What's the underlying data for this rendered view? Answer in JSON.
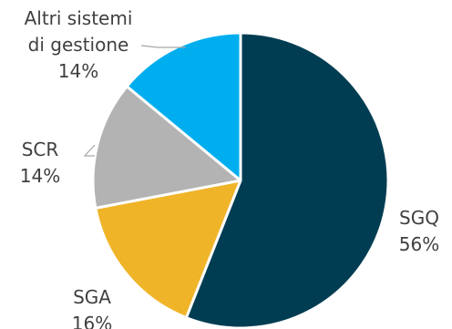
{
  "chart_data": {
    "type": "pie",
    "title": "",
    "categories": [
      "SGQ",
      "SGA",
      "SCR",
      "Altri sistemi di gestione"
    ],
    "values": [
      56,
      16,
      14,
      14
    ],
    "value_labels": [
      "56%",
      "16%",
      "14%",
      "14%"
    ],
    "label_lines": [
      [
        "SGQ"
      ],
      [
        "SGA"
      ],
      [
        "SCR"
      ],
      [
        "Altri sistemi",
        "di gestione"
      ]
    ],
    "colors": [
      "#003d52",
      "#f0b429",
      "#b3b3b3",
      "#00aeef"
    ],
    "start_angle_deg": 0,
    "direction": "clockwise",
    "legend": "none"
  }
}
